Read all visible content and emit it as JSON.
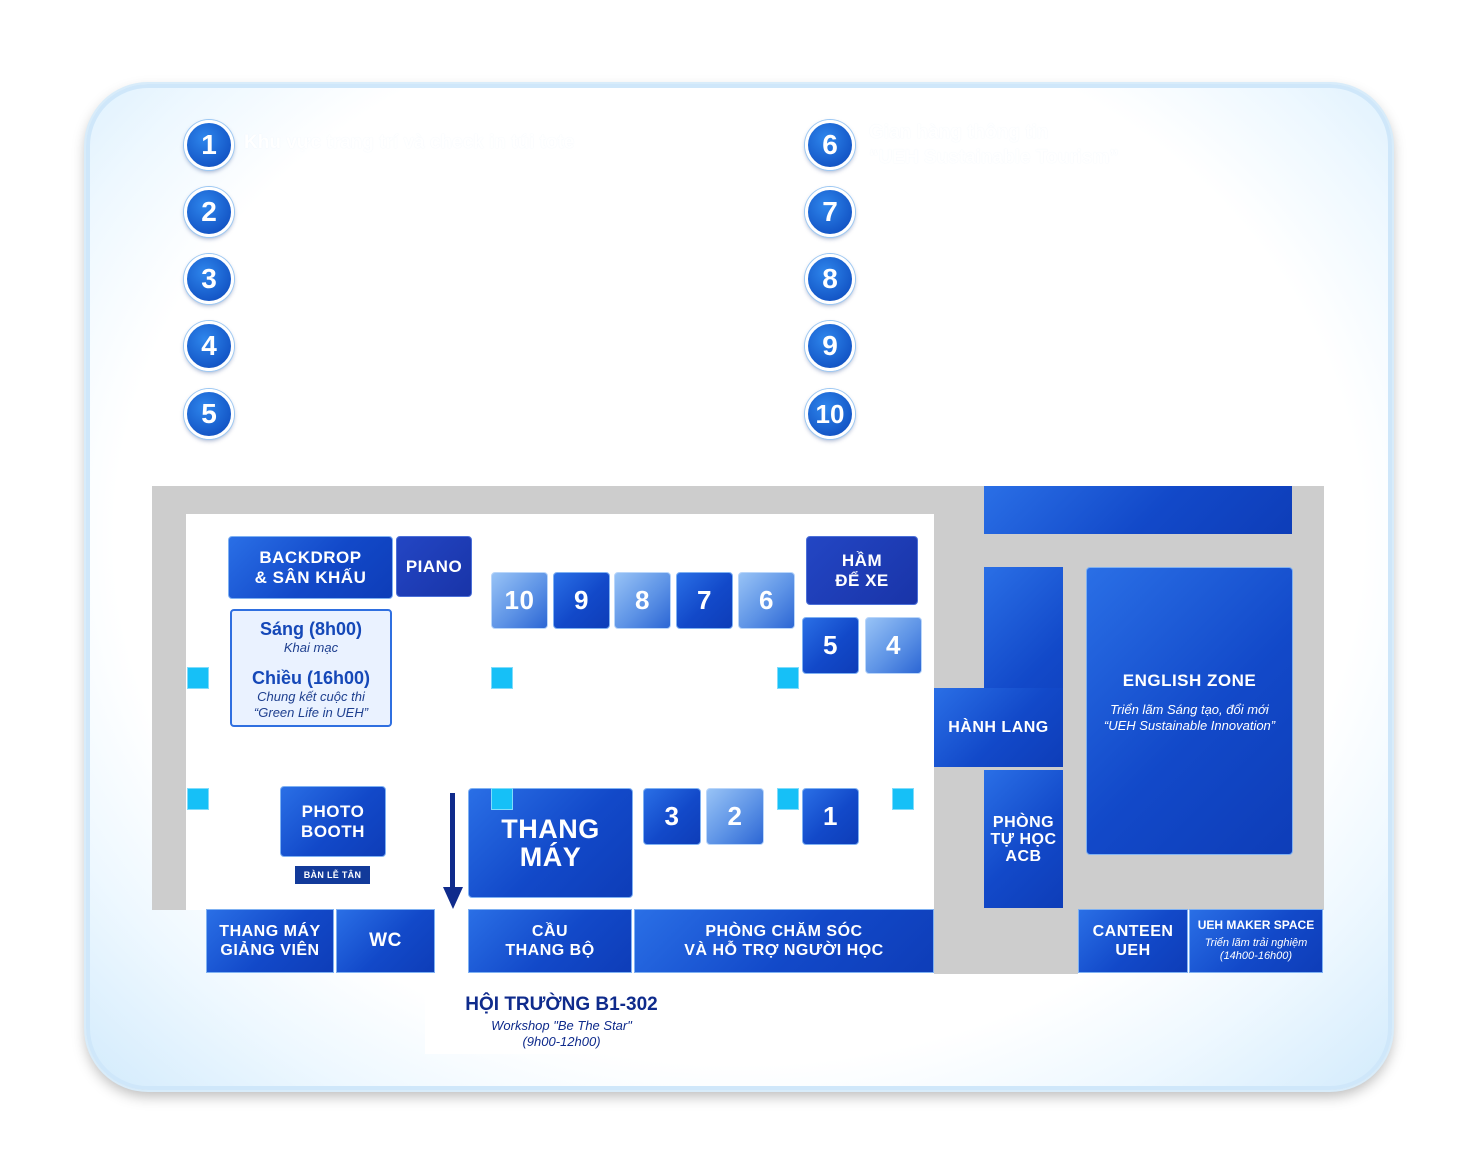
{
  "legend": {
    "items": [
      {
        "num": "1",
        "text": "Khu vực trang trí và check in túi tote"
      },
      {
        "num": "2",
        "text": ""
      },
      {
        "num": "3",
        "text": ""
      },
      {
        "num": "4",
        "text": ""
      },
      {
        "num": "5",
        "text": ""
      },
      {
        "num": "6",
        "text": "Gian hàng thông tin",
        "text2": "“UEH Sustainable Tourism”"
      },
      {
        "num": "7",
        "text": ""
      },
      {
        "num": "8",
        "text": ""
      },
      {
        "num": "9",
        "text": ""
      },
      {
        "num": "10",
        "text": ""
      }
    ]
  },
  "map": {
    "backdrop": {
      "line1": "BACKDROP",
      "line2": "& SÂN KHẤU"
    },
    "piano": "PIANO",
    "parking": {
      "line1": "HẦM",
      "line2": "ĐỂ XE"
    },
    "schedule": {
      "morning_title": "Sáng (8h00)",
      "morning_sub": "Khai mạc",
      "afternoon_title": "Chiều (16h00)",
      "afternoon_sub1": "Chung kết cuộc thi",
      "afternoon_sub2": "“Green Life in UEH”"
    },
    "booths": {
      "b10": "10",
      "b9": "9",
      "b8": "8",
      "b7": "7",
      "b6": "6",
      "b5": "5",
      "b4": "4",
      "b3": "3",
      "b2": "2",
      "b1": "1"
    },
    "photo_booth": {
      "line1": "PHOTO",
      "line2": "BOOTH"
    },
    "reception": "BÀN LỄ TÂN",
    "elevator": {
      "line1": "THANG",
      "line2": "MÁY"
    },
    "corridor": "HÀNH LANG",
    "study_room": {
      "line1": "PHÒNG",
      "line2": "TỰ HỌC",
      "line3": "ACB"
    },
    "english_zone": {
      "title": "ENGLISH ZONE",
      "sub1": "Triển lãm Sáng tạo, đổi mới",
      "sub2": "“UEH Sustainable Innovation”"
    },
    "staff_elevator": {
      "line1": "THANG MÁY",
      "line2": "GIẢNG VIÊN"
    },
    "wc": "WC",
    "stairs": {
      "line1": "CẦU",
      "line2": "THANG BỘ"
    },
    "support_room": {
      "line1": "PHÒNG CHĂM SÓC",
      "line2": "VÀ HỖ TRỢ NGƯỜI HỌC"
    },
    "canteen": {
      "line1": "CANTEEN",
      "line2": "UEH"
    },
    "maker_space": {
      "title": "UEH MAKER SPACE",
      "sub1": "Triển lãm trải nghiệm",
      "sub2": "(14h00-16h00)"
    },
    "hall": {
      "title": "HỘI TRƯỜNG B1-302",
      "sub1": "Workshop \"Be The Star\"",
      "sub2": "(9h00-12h00)"
    }
  }
}
